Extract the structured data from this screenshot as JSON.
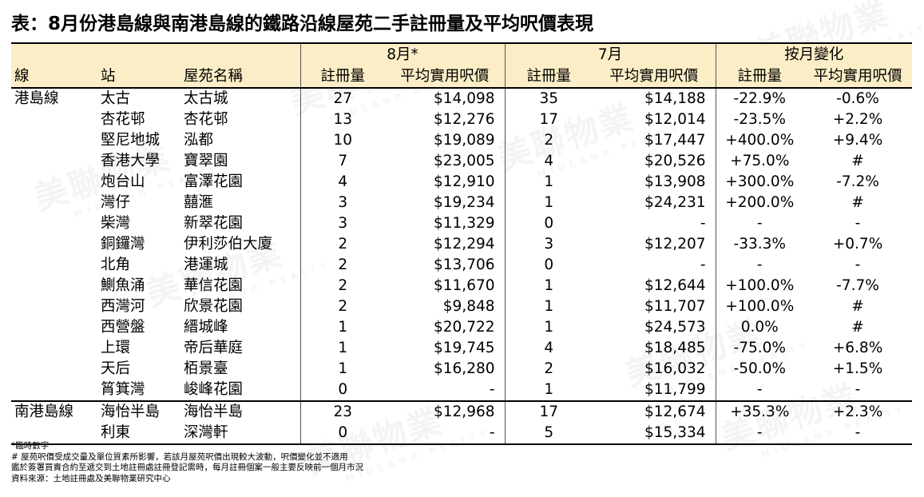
{
  "title": "表：8月份港島線與南港島線的鐵路沿線屋苑二手註冊量及平均呎價表現",
  "header": {
    "aug": "8月*",
    "jul": "7月",
    "mom": "按月變化",
    "line": "線",
    "station": "站",
    "estate": "屋苑名稱",
    "reg": "註冊量",
    "price": "平均實用呎價"
  },
  "groups": [
    {
      "line": "港島線",
      "rows": [
        {
          "station": "太古",
          "estate": "太古城",
          "aug_reg": "27",
          "aug_price": "$14,098",
          "jul_reg": "35",
          "jul_price": "$14,188",
          "mom_reg": "-22.9%",
          "mom_price": "-0.6%"
        },
        {
          "station": "杏花邨",
          "estate": "杏花邨",
          "aug_reg": "13",
          "aug_price": "$12,276",
          "jul_reg": "17",
          "jul_price": "$12,014",
          "mom_reg": "-23.5%",
          "mom_price": "+2.2%"
        },
        {
          "station": "堅尼地城",
          "estate": "泓都",
          "aug_reg": "10",
          "aug_price": "$19,089",
          "jul_reg": "2",
          "jul_price": "$17,447",
          "mom_reg": "+400.0%",
          "mom_price": "+9.4%"
        },
        {
          "station": "香港大學",
          "estate": "寶翠園",
          "aug_reg": "7",
          "aug_price": "$23,005",
          "jul_reg": "4",
          "jul_price": "$20,526",
          "mom_reg": "+75.0%",
          "mom_price": "#"
        },
        {
          "station": "炮台山",
          "estate": "富澤花園",
          "aug_reg": "4",
          "aug_price": "$12,910",
          "jul_reg": "1",
          "jul_price": "$13,908",
          "mom_reg": "+300.0%",
          "mom_price": "-7.2%"
        },
        {
          "station": "灣仔",
          "estate": "囍滙",
          "aug_reg": "3",
          "aug_price": "$19,234",
          "jul_reg": "1",
          "jul_price": "$24,231",
          "mom_reg": "+200.0%",
          "mom_price": "#"
        },
        {
          "station": "柴灣",
          "estate": "新翠花園",
          "aug_reg": "3",
          "aug_price": "$11,329",
          "jul_reg": "0",
          "jul_price": "-",
          "mom_reg": "-",
          "mom_price": "-"
        },
        {
          "station": "銅鑼灣",
          "estate": "伊利莎伯大廈",
          "aug_reg": "2",
          "aug_price": "$12,294",
          "jul_reg": "3",
          "jul_price": "$12,207",
          "mom_reg": "-33.3%",
          "mom_price": "+0.7%"
        },
        {
          "station": "北角",
          "estate": "港運城",
          "aug_reg": "2",
          "aug_price": "$13,706",
          "jul_reg": "0",
          "jul_price": "-",
          "mom_reg": "-",
          "mom_price": "-"
        },
        {
          "station": "鰂魚涌",
          "estate": "華信花園",
          "aug_reg": "2",
          "aug_price": "$11,670",
          "jul_reg": "1",
          "jul_price": "$12,644",
          "mom_reg": "+100.0%",
          "mom_price": "-7.7%"
        },
        {
          "station": "西灣河",
          "estate": "欣景花園",
          "aug_reg": "2",
          "aug_price": "$9,848",
          "jul_reg": "1",
          "jul_price": "$11,707",
          "mom_reg": "+100.0%",
          "mom_price": "#"
        },
        {
          "station": "西營盤",
          "estate": "縉城峰",
          "aug_reg": "1",
          "aug_price": "$20,722",
          "jul_reg": "1",
          "jul_price": "$24,573",
          "mom_reg": "0.0%",
          "mom_price": "#"
        },
        {
          "station": "上環",
          "estate": "帝后華庭",
          "aug_reg": "1",
          "aug_price": "$19,745",
          "jul_reg": "4",
          "jul_price": "$18,485",
          "mom_reg": "-75.0%",
          "mom_price": "+6.8%"
        },
        {
          "station": "天后",
          "estate": "栢景臺",
          "aug_reg": "1",
          "aug_price": "$16,280",
          "jul_reg": "2",
          "jul_price": "$16,032",
          "mom_reg": "-50.0%",
          "mom_price": "+1.5%"
        },
        {
          "station": "筲箕灣",
          "estate": "峻峰花園",
          "aug_reg": "0",
          "aug_price": "-",
          "jul_reg": "1",
          "jul_price": "$11,799",
          "mom_reg": "-",
          "mom_price": "-"
        }
      ]
    },
    {
      "line": "南港島線",
      "rows": [
        {
          "station": "海怡半島",
          "estate": "海怡半島",
          "aug_reg": "23",
          "aug_price": "$12,968",
          "jul_reg": "17",
          "jul_price": "$12,674",
          "mom_reg": "+35.3%",
          "mom_price": "+2.3%"
        },
        {
          "station": "利東",
          "estate": "深灣軒",
          "aug_reg": "0",
          "aug_price": "-",
          "jul_reg": "5",
          "jul_price": "$15,334",
          "mom_reg": "-",
          "mom_price": "-"
        }
      ]
    }
  ],
  "notes": [
    "*臨時數字",
    "# 屋苑呎價受成交量及單位質素所影響，若該月屋苑呎價出現較大波動，呎價變化並不適用",
    "鑑於簽署買賣合約至遞交到土地註冊處註冊登記需時，每月註冊個案一般主要反映前一個月市況",
    "資料來源：土地註冊處及美聯物業研究中心"
  ],
  "watermark": {
    "text": "美聯物業",
    "sub": "MIDLAND REALTY"
  }
}
